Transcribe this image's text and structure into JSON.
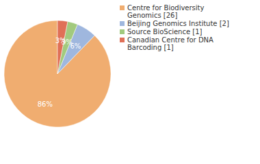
{
  "chart_data": {
    "type": "pie",
    "categories": [
      "Centre for Biodiversity Genomics [26]",
      "Beijing Genomics Institute [2]",
      "Source BioScience [1]",
      "Canadian Centre for DNA Barcoding [1]"
    ],
    "values": [
      86,
      6,
      3,
      3
    ],
    "value_labels": [
      "86%",
      "6%",
      "3%",
      "3%"
    ],
    "colors": [
      "#f0ad70",
      "#9fb7de",
      "#a2ca7e",
      "#e07057"
    ],
    "data_labels": true,
    "legend": "upper right"
  }
}
